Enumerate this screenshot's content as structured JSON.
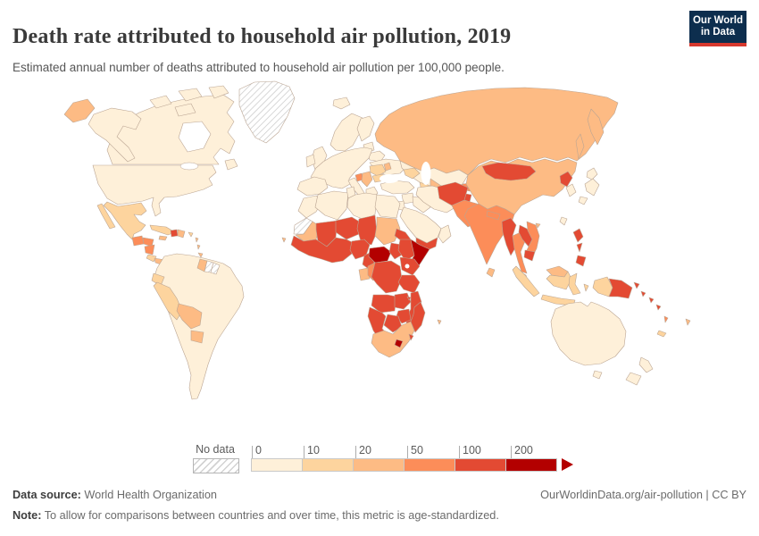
{
  "header": {
    "title": "Death rate attributed to household air pollution, 2019",
    "subtitle": "Estimated annual number of deaths attributed to household air pollution per 100,000 people."
  },
  "logo": {
    "line1": "Our World",
    "line2": "in Data",
    "bg_color": "#0d2e4e",
    "accent_color": "#d7382d"
  },
  "legend": {
    "no_data_label": "No data",
    "ticks": [
      "0",
      "10",
      "20",
      "50",
      "100",
      "200"
    ],
    "bins": [
      {
        "key": "bin1",
        "range": "0-10",
        "color": "#fef0d9"
      },
      {
        "key": "bin2",
        "range": "10-20",
        "color": "#fdd49e"
      },
      {
        "key": "bin3",
        "range": "20-50",
        "color": "#fdbb84"
      },
      {
        "key": "bin4",
        "range": "50-100",
        "color": "#fc8d59"
      },
      {
        "key": "bin5",
        "range": "100-200",
        "color": "#e34a33"
      },
      {
        "key": "bin6",
        "range": "200+",
        "color": "#b30000"
      }
    ]
  },
  "footer": {
    "data_source_label": "Data source:",
    "data_source": "World Health Organization",
    "attribution": "OurWorldinData.org/air-pollution | CC BY",
    "note_label": "Note:",
    "note_text": "To allow for comparisons between countries and over time, this metric is age-standardized."
  },
  "chart_data": {
    "type": "choropleth-world-map",
    "title": "Death rate attributed to household air pollution, 2019",
    "metric": "Deaths attributed to household air pollution per 100,000 people (age-standardized)",
    "year": 2019,
    "scale_ticks": [
      0,
      10,
      20,
      50,
      100,
      200
    ],
    "scale_colors": [
      "#fef0d9",
      "#fdd49e",
      "#fdbb84",
      "#fc8d59",
      "#e34a33",
      "#b30000"
    ],
    "no_data_regions": [
      "greenland",
      "western_sahara",
      "suriname",
      "french_guiana"
    ],
    "regions": {
      "canada": "bin1",
      "arctic_1": "bin1",
      "arctic_2": "bin1",
      "arctic_3": "bin1",
      "arctic_4": "bin1",
      "newfoundland": "bin1",
      "alaska": "bin1",
      "usa": "bin1",
      "greenland": "nodata",
      "iceland": "bin1",
      "chukotka": "bin3",
      "mexico": "bin2",
      "baja": "bin2",
      "guatemala": "bin4",
      "honduras": "bin4",
      "nicaragua": "bin4",
      "costa_rica": "bin2",
      "panama": "bin3",
      "cuba": "bin2",
      "jamaica": "bin3",
      "haiti": "bin5",
      "dominican_republic": "bin3",
      "puerto_rico": "bin2",
      "antilles_1": "bin3",
      "antilles_2": "bin3",
      "trinidad": "bin3",
      "south_america": "bin1",
      "ecuador": "bin2",
      "peru": "bin2",
      "bolivia": "bin3",
      "paraguay": "bin3",
      "guyana": "bin3",
      "suriname": "nodata",
      "french_guiana": "nodata",
      "uk": "bin1",
      "ireland": "bin1",
      "norway_sweden": "bin1",
      "finland": "bin1",
      "baltics": "bin1",
      "belarus": "bin1",
      "ukraine": "bin1",
      "europe_w": "bin1",
      "iberia": "bin1",
      "italy": "bin1",
      "sicily": "bin1",
      "greece": "bin1",
      "bosnia": "bin4",
      "serbia_albania": "bin3",
      "romania": "bin2",
      "bulgaria": "bin2",
      "moldova": "bin3",
      "russia": "bin3",
      "kamchatka": "bin3",
      "sakhalin": "bin3",
      "kazakhstan": "bin1",
      "caucasus": "bin2",
      "turkmenistan": "bin2",
      "uzbekistan": "bin3",
      "kyrgyzstan": "bin4",
      "tajikistan": "bin5",
      "turkey": "bin1",
      "syria": "bin1",
      "israel_jordan": "bin1",
      "iraq": "bin1",
      "iran": "bin1",
      "saudi": "bin1",
      "yemen": "bin5",
      "oman": "bin1",
      "afghanistan": "bin5",
      "pakistan": "bin4",
      "india": "bin4",
      "nepal": "bin4",
      "bangladesh": "bin4",
      "sri_lanka": "bin3",
      "china": "bin3",
      "mongolia": "bin5",
      "hainan": "bin3",
      "north_korea": "bin5",
      "south_korea": "bin1",
      "japan_hokkaido": "bin1",
      "japan_honshu": "bin1",
      "japan_kyushu": "bin1",
      "taiwan": "bin1",
      "myanmar": "bin5",
      "thailand": "bin4",
      "laos": "bin5",
      "vietnam": "bin4",
      "cambodia": "bin5",
      "malaysia_pen": "bin3",
      "borneo_malaysia": "bin3",
      "borneo_indonesia": "bin2",
      "sumatra": "bin2",
      "java": "bin2",
      "sulawesi": "bin2",
      "lesser_sunda": "bin2",
      "maluku": "bin2",
      "timor": "bin3",
      "west_papua": "bin2",
      "png": "bin5",
      "new_britain": "bin5",
      "philippines_1": "bin5",
      "philippines_2": "bin5",
      "philippines_3": "bin5",
      "solomons_1": "bin5",
      "solomons_2": "bin5",
      "solomons_3": "bin5",
      "vanuatu": "bin4",
      "new_caledonia": "bin2",
      "fiji": "bin3",
      "australia": "bin1",
      "tasmania": "bin1",
      "nz_north": "bin1",
      "nz_south": "bin1",
      "morocco": "bin1",
      "western_sahara": "nodata",
      "algeria": "bin1",
      "tunisia": "bin1",
      "libya": "bin1",
      "egypt": "bin1",
      "mauritania": "bin3",
      "mali": "bin5",
      "niger": "bin5",
      "chad": "bin5",
      "sudan": "bin3",
      "eritrea_djibouti": "bin5",
      "west_africa": "bin5",
      "nigeria": "bin5",
      "cameroon": "bin5",
      "central_african_republic": "bin6",
      "south_sudan": "bin5",
      "ethiopia": "bin5",
      "somalia": "bin6",
      "gabon": "bin3",
      "congo": "bin4",
      "drc": "bin5",
      "uganda_kenya": "bin5",
      "tanzania": "bin5",
      "angola": "bin5",
      "zambia": "bin5",
      "malawi_mozambique": "bin5",
      "zimbabwe": "bin5",
      "botswana": "bin5",
      "namibia": "bin5",
      "south_africa": "bin3",
      "lesotho": "bin6",
      "eswatini": "bin5",
      "madagascar": "bin5",
      "comoros": "bin5",
      "mauritius": "bin3",
      "cape_verde": "bin3"
    }
  }
}
